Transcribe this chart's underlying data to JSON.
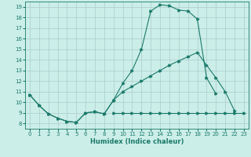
{
  "xlabel": "Humidex (Indice chaleur)",
  "bg_color": "#cceee8",
  "grid_color": "#aacccc",
  "line_color": "#1a7a6a",
  "xlim": [
    -0.5,
    23.5
  ],
  "ylim": [
    7.5,
    19.5
  ],
  "xticks": [
    0,
    1,
    2,
    3,
    4,
    5,
    6,
    7,
    8,
    9,
    10,
    11,
    12,
    13,
    14,
    15,
    16,
    17,
    18,
    19,
    20,
    21,
    22,
    23
  ],
  "yticks": [
    8,
    9,
    10,
    11,
    12,
    13,
    14,
    15,
    16,
    17,
    18,
    19
  ],
  "line1_x": [
    0,
    1,
    2,
    3,
    4,
    5,
    6,
    7,
    8,
    9,
    10,
    11,
    12,
    13,
    14,
    15,
    16,
    17,
    18,
    19,
    20
  ],
  "line1_y": [
    10.7,
    9.7,
    8.9,
    8.5,
    8.2,
    8.1,
    9.0,
    9.1,
    8.9,
    10.2,
    11.8,
    13.0,
    15.0,
    18.6,
    19.2,
    19.1,
    18.7,
    18.6,
    17.85,
    12.3,
    10.8
  ],
  "line2_x": [
    0,
    1,
    2,
    3,
    4,
    5,
    6,
    7,
    8,
    9,
    10,
    11,
    12,
    13,
    14,
    15,
    16,
    17,
    18,
    19,
    20,
    21,
    22
  ],
  "line2_y": [
    10.7,
    9.7,
    8.9,
    8.5,
    8.2,
    8.1,
    9.0,
    9.1,
    8.9,
    10.2,
    11.0,
    11.5,
    12.0,
    12.5,
    13.0,
    13.5,
    13.9,
    14.3,
    14.7,
    13.5,
    12.3,
    11.0,
    9.2
  ],
  "line3_x": [
    9,
    10,
    11,
    12,
    13,
    14,
    15,
    16,
    17,
    18,
    19,
    20,
    21,
    22,
    23
  ],
  "line3_y": [
    9.0,
    9.0,
    9.0,
    9.0,
    9.0,
    9.0,
    9.0,
    9.0,
    9.0,
    9.0,
    9.0,
    9.0,
    9.0,
    9.0,
    9.0
  ]
}
